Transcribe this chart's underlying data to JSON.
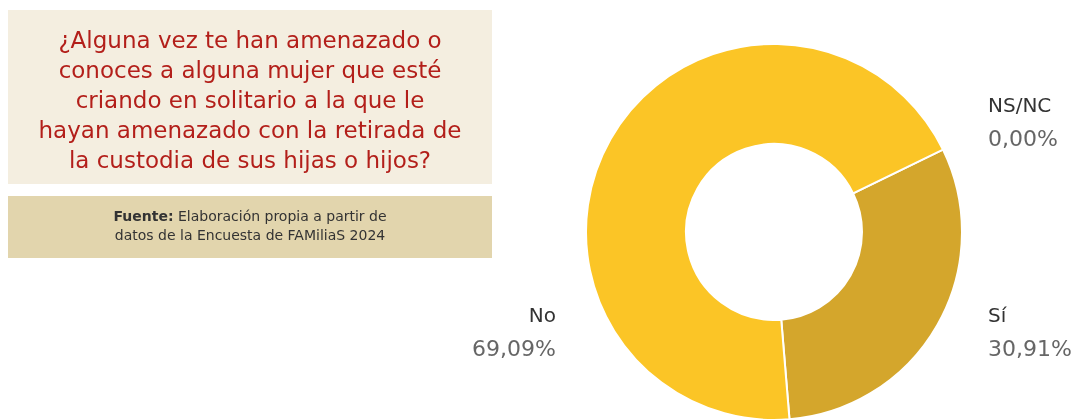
{
  "chart_data": {
    "type": "donut",
    "title": "¿Alguna vez te han amenazado o conoces a alguna mujer que esté criando en solitario a la que le hayan amenazado con la retirada de la custodia de sus hijas o hijos?",
    "annotations": [
      "Fuente: Elaboración propia a partir de datos de la Encuesta de FAMiliaS 2024"
    ],
    "categories": [
      "NS/NC",
      "Sí",
      "No"
    ],
    "values": [
      0,
      30.91,
      69.09
    ],
    "value_labels": [
      "0,00%",
      "30,91%",
      "69,09%"
    ],
    "colors": [
      "#d4a62c",
      "#d4a62c",
      "#fbc526"
    ]
  }
}
